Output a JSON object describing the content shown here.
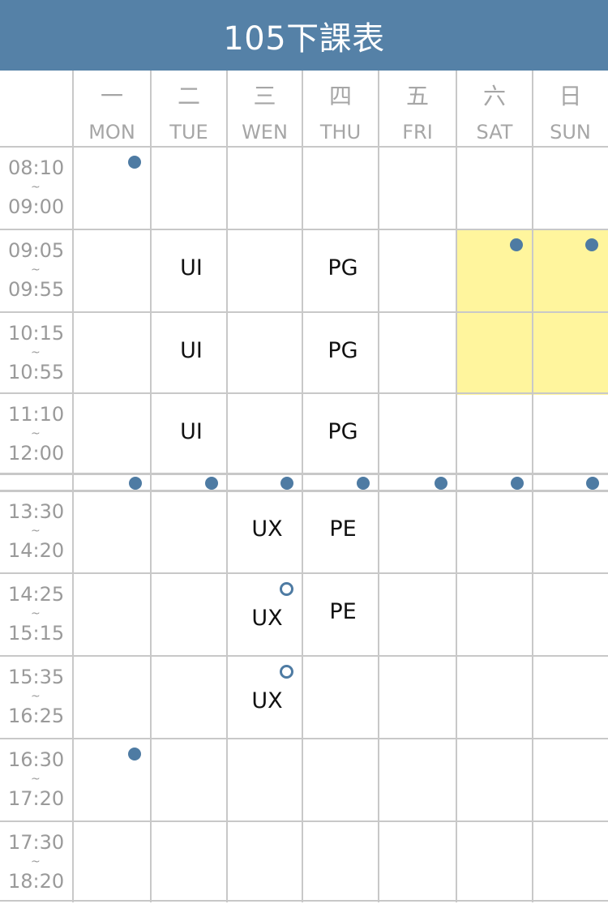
{
  "header": {
    "title": "105下課表",
    "accent": "#5581a7"
  },
  "days": [
    {
      "zh": "一",
      "en": "MON"
    },
    {
      "zh": "二",
      "en": "TUE"
    },
    {
      "zh": "三",
      "en": "WEN"
    },
    {
      "zh": "四",
      "en": "THU"
    },
    {
      "zh": "五",
      "en": "FRI"
    },
    {
      "zh": "六",
      "en": "SAT"
    },
    {
      "zh": "日",
      "en": "SUN"
    }
  ],
  "periods": [
    {
      "start": "08:10",
      "sep": "~",
      "end": "09:00"
    },
    {
      "start": "09:05",
      "sep": "~",
      "end": "09:55"
    },
    {
      "start": "10:15",
      "sep": "~",
      "end": "10:55"
    },
    {
      "start": "11:10",
      "sep": "~",
      "end": "12:00"
    },
    {
      "start": "13:30",
      "sep": "~",
      "end": "14:20"
    },
    {
      "start": "14:25",
      "sep": "~",
      "end": "15:15"
    },
    {
      "start": "15:35",
      "sep": "~",
      "end": "16:25"
    },
    {
      "start": "16:30",
      "sep": "~",
      "end": "17:20"
    },
    {
      "start": "17:30",
      "sep": "~",
      "end": "18:20"
    }
  ],
  "courses": [
    {
      "day": 1,
      "period": 1,
      "name": "UI"
    },
    {
      "day": 1,
      "period": 2,
      "name": "UI"
    },
    {
      "day": 1,
      "period": 3,
      "name": "UI"
    },
    {
      "day": 3,
      "period": 1,
      "name": "PG"
    },
    {
      "day": 3,
      "period": 2,
      "name": "PG"
    },
    {
      "day": 3,
      "period": 3,
      "name": "PG"
    },
    {
      "day": 2,
      "period": 4,
      "name": "UX"
    },
    {
      "day": 2,
      "period": 5,
      "name": "UX"
    },
    {
      "day": 2,
      "period": 6,
      "name": "UX"
    },
    {
      "day": 3,
      "period": 4,
      "name": "PE"
    },
    {
      "day": 3,
      "period": 5,
      "name": "PE"
    }
  ],
  "highlighted_cells": [
    {
      "day": 5,
      "period": 1
    },
    {
      "day": 6,
      "period": 1
    },
    {
      "day": 5,
      "period": 2
    },
    {
      "day": 6,
      "period": 2
    }
  ],
  "markers": [
    {
      "day": 0,
      "period": 0,
      "style": "filled"
    },
    {
      "day": 5,
      "period": 1,
      "style": "filled"
    },
    {
      "day": 6,
      "period": 1,
      "style": "filled"
    },
    {
      "day": 0,
      "period": 7,
      "style": "filled"
    },
    {
      "day": 2,
      "period": 5,
      "style": "outline"
    },
    {
      "day": 2,
      "period": 6,
      "style": "outline"
    }
  ],
  "lunch_markers": [
    0,
    1,
    2,
    3,
    4,
    5,
    6
  ],
  "colors": {
    "highlight": "#fff59d",
    "marker": "#4e7ba3",
    "grid": "#c8c8c8"
  }
}
